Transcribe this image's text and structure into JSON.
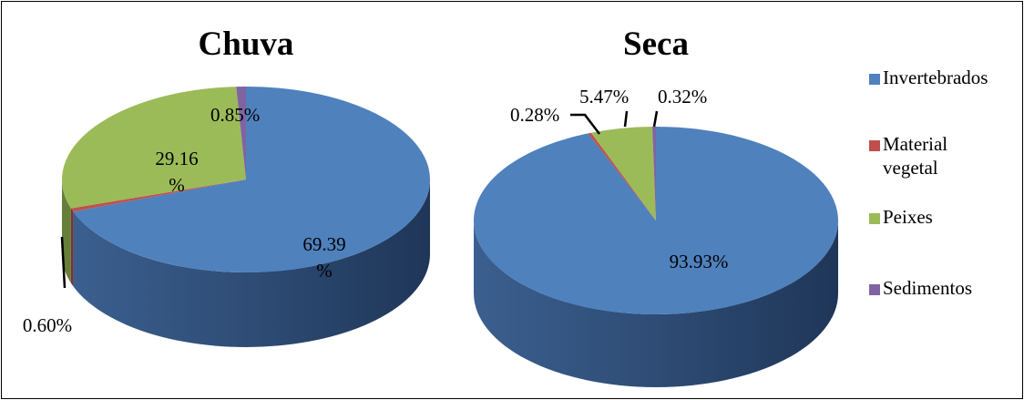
{
  "chart_data": [
    {
      "type": "pie",
      "title": "Chuva",
      "categories": [
        "Invertebrados",
        "Material vegetal",
        "Peixes",
        "Sedimentos"
      ],
      "values": [
        69.39,
        0.6,
        29.16,
        0.85
      ],
      "labels": [
        [
          "69.39",
          "%"
        ],
        [
          "0.60%"
        ],
        [
          "29.16",
          "%"
        ],
        [
          "0.85%"
        ]
      ]
    },
    {
      "type": "pie",
      "title": "Seca",
      "categories": [
        "Invertebrados",
        "Material vegetal",
        "Peixes",
        "Sedimentos"
      ],
      "values": [
        93.93,
        0.28,
        5.47,
        0.32
      ],
      "labels": [
        [
          "93.93%"
        ],
        [
          "0.28%"
        ],
        [
          "5.47%"
        ],
        [
          "0.32%"
        ]
      ]
    }
  ],
  "legend": {
    "placement": "right",
    "items": [
      {
        "lines": [
          "Invertebrados"
        ],
        "color": "#4F81BD"
      },
      {
        "lines": [
          "Material",
          "vegetal"
        ],
        "color": "#C0504D"
      },
      {
        "lines": [
          "Peixes"
        ],
        "color": "#9BBB59"
      },
      {
        "lines": [
          "Sedimentos"
        ],
        "color": "#8064A2"
      }
    ]
  },
  "colors": {
    "top": [
      "#4F81BD",
      "#C0504D",
      "#9BBB59",
      "#8064A2"
    ],
    "side": [
      "#2C4A70",
      "#7D3330",
      "#677E3B",
      "#56436F"
    ]
  }
}
